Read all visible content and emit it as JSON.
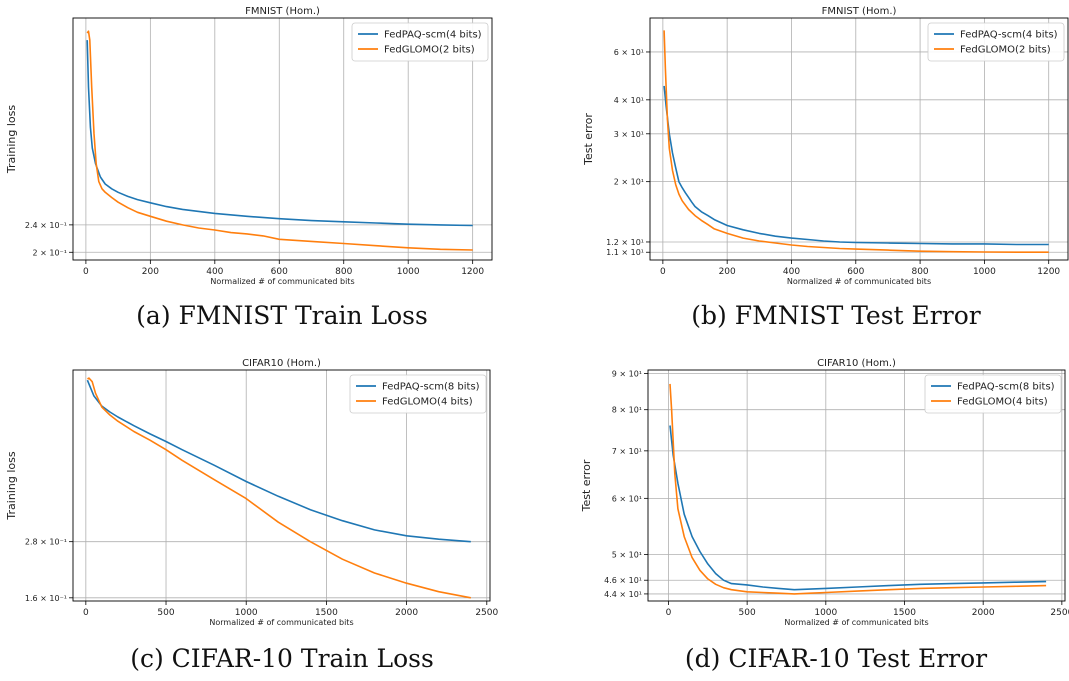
{
  "colors": {
    "series1": "#1f77b4",
    "series2": "#ff7f0e",
    "grid": "#b0b0b0"
  },
  "captions": [
    "(a) FMNIST Train Loss",
    "(b) FMNIST Test Error",
    "(c) CIFAR-10 Train Loss",
    "(d) CIFAR-10 Test Error"
  ],
  "chart_data": [
    {
      "type": "line",
      "title": "FMNIST (Hom.)",
      "xlabel": "Normalized # of communicated bits",
      "ylabel": "Training loss",
      "yscale": "log",
      "xlim": [
        -40,
        1260
      ],
      "ylim": [
        0.19,
        0.95
      ],
      "xticks": [
        0,
        200,
        400,
        600,
        800,
        1000,
        1200
      ],
      "xticklabels": [
        "0",
        "200",
        "400",
        "600",
        "800",
        "1000",
        "1200"
      ],
      "yticks": [
        0.24,
        0.2
      ],
      "yticklabels": [
        "2.4 × 10⁻¹",
        "2 × 10⁻¹"
      ],
      "grid": true,
      "legend": "top-right",
      "series": [
        {
          "name": "FedPAQ-scm(4 bits)",
          "x": [
            4,
            8,
            14,
            20,
            30,
            45,
            60,
            80,
            100,
            130,
            160,
            200,
            250,
            300,
            400,
            500,
            600,
            700,
            800,
            900,
            1000,
            1100,
            1200
          ],
          "y": [
            0.82,
            0.6,
            0.46,
            0.4,
            0.36,
            0.33,
            0.315,
            0.305,
            0.298,
            0.29,
            0.284,
            0.278,
            0.271,
            0.266,
            0.259,
            0.254,
            0.25,
            0.247,
            0.245,
            0.243,
            0.241,
            0.24,
            0.239
          ]
        },
        {
          "name": "FedGLOMO(2 bits)",
          "x": [
            4,
            8,
            12,
            18,
            25,
            32,
            40,
            50,
            60,
            80,
            100,
            130,
            160,
            200,
            250,
            300,
            350,
            400,
            450,
            500,
            550,
            600,
            700,
            800,
            900,
            1000,
            1100,
            1200
          ],
          "y": [
            0.86,
            0.87,
            0.82,
            0.6,
            0.44,
            0.36,
            0.32,
            0.305,
            0.298,
            0.288,
            0.279,
            0.269,
            0.261,
            0.254,
            0.246,
            0.24,
            0.235,
            0.232,
            0.228,
            0.226,
            0.223,
            0.218,
            0.215,
            0.212,
            0.209,
            0.206,
            0.204,
            0.203
          ]
        }
      ]
    },
    {
      "type": "line",
      "title": "FMNIST (Hom.)",
      "xlabel": "Normalized # of communicated bits",
      "ylabel": "Test error",
      "yscale": "log",
      "xlim": [
        -40,
        1260
      ],
      "ylim": [
        10.3,
        80
      ],
      "xticks": [
        0,
        200,
        400,
        600,
        800,
        1000,
        1200
      ],
      "xticklabels": [
        "0",
        "200",
        "400",
        "600",
        "800",
        "1000",
        "1200"
      ],
      "yticks": [
        60,
        40,
        30,
        20,
        12,
        11
      ],
      "yticklabels": [
        "6 × 10¹",
        "4 × 10¹",
        "3 × 10¹",
        "2 × 10¹",
        "1.2 × 10¹",
        "1.1 × 10¹"
      ],
      "grid": true,
      "legend": "top-right",
      "series": [
        {
          "name": "FedPAQ-scm(4 bits)",
          "x": [
            4,
            10,
            20,
            30,
            40,
            50,
            60,
            70,
            80,
            90,
            100,
            120,
            140,
            160,
            200,
            250,
            300,
            350,
            400,
            450,
            500,
            550,
            600,
            700,
            800,
            900,
            1000,
            1100,
            1200
          ],
          "y": [
            45,
            38,
            30,
            25.5,
            22.5,
            20,
            19,
            18.2,
            17.5,
            16.8,
            16.2,
            15.5,
            15,
            14.5,
            13.8,
            13.3,
            12.9,
            12.6,
            12.4,
            12.25,
            12.1,
            12.0,
            11.95,
            11.9,
            11.85,
            11.8,
            11.8,
            11.75,
            11.75
          ]
        },
        {
          "name": "FedGLOMO(2 bits)",
          "x": [
            4,
            8,
            14,
            20,
            30,
            40,
            50,
            60,
            80,
            100,
            120,
            140,
            160,
            200,
            250,
            300,
            350,
            400,
            450,
            500,
            550,
            600,
            700,
            800,
            900,
            1000,
            1100,
            1200
          ],
          "y": [
            72,
            52,
            34,
            26.5,
            22,
            19.5,
            18,
            17,
            15.8,
            15,
            14.4,
            13.9,
            13.4,
            12.9,
            12.4,
            12.1,
            11.9,
            11.7,
            11.55,
            11.45,
            11.35,
            11.3,
            11.2,
            11.1,
            11.05,
            11.02,
            11.0,
            11.0
          ]
        }
      ]
    },
    {
      "type": "line",
      "title": "CIFAR10 (Hom.)",
      "xlabel": "Normalized # of communicated bits",
      "ylabel": "Training loss",
      "yscale": "log",
      "xlim": [
        -80,
        2520
      ],
      "ylim": [
        0.155,
        1.55
      ],
      "xticks": [
        0,
        500,
        1000,
        1500,
        2000,
        2500
      ],
      "xticklabels": [
        "0",
        "500",
        "1000",
        "1500",
        "2000",
        "2500"
      ],
      "yticks": [
        0.28,
        0.16
      ],
      "yticklabels": [
        "2.8 × 10⁻¹",
        "1.6 × 10⁻¹"
      ],
      "grid": true,
      "legend": "top-right",
      "series": [
        {
          "name": "FedPAQ-scm(8 bits)",
          "x": [
            10,
            50,
            100,
            150,
            200,
            300,
            400,
            500,
            600,
            800,
            1000,
            1200,
            1400,
            1600,
            1800,
            2000,
            2200,
            2400
          ],
          "y": [
            1.4,
            1.2,
            1.08,
            1.02,
            0.97,
            0.89,
            0.82,
            0.76,
            0.7,
            0.6,
            0.51,
            0.44,
            0.385,
            0.345,
            0.315,
            0.297,
            0.287,
            0.28
          ]
        },
        {
          "name": "FedGLOMO(4 bits)",
          "x": [
            10,
            20,
            40,
            60,
            100,
            150,
            200,
            300,
            400,
            500,
            600,
            800,
            1000,
            1200,
            1400,
            1600,
            1800,
            2000,
            2200,
            2400
          ],
          "y": [
            1.42,
            1.43,
            1.38,
            1.23,
            1.07,
            0.99,
            0.93,
            0.84,
            0.77,
            0.7,
            0.63,
            0.52,
            0.43,
            0.34,
            0.28,
            0.235,
            0.205,
            0.185,
            0.17,
            0.16
          ]
        }
      ]
    },
    {
      "type": "line",
      "title": "CIFAR10 (Hom.)",
      "xlabel": "Normalized # of communicated bits",
      "ylabel": "Test error",
      "yscale": "log",
      "xlim": [
        -130,
        2520
      ],
      "ylim": [
        43,
        91
      ],
      "xticks": [
        0,
        500,
        1000,
        1500,
        2000,
        2500
      ],
      "xticklabels": [
        "0",
        "500",
        "1000",
        "1500",
        "2000",
        "2500"
      ],
      "yticks": [
        90,
        80,
        70,
        60,
        50,
        46,
        44
      ],
      "yticklabels": [
        "9 × 10¹",
        "8 × 10¹",
        "7 × 10¹",
        "6 × 10¹",
        "5 × 10¹",
        "4.6 × 10¹",
        "4.4 × 10¹"
      ],
      "grid": true,
      "legend": "top-right",
      "series": [
        {
          "name": "FedPAQ-scm(8 bits)",
          "x": [
            10,
            30,
            60,
            100,
            150,
            200,
            250,
            300,
            350,
            400,
            500,
            600,
            700,
            800,
            900,
            1000,
            1200,
            1400,
            1600,
            1800,
            2000,
            2200,
            2400
          ],
          "y": [
            76,
            69,
            63,
            57,
            53,
            50.5,
            48.5,
            47,
            46,
            45.5,
            45.3,
            45.0,
            44.8,
            44.6,
            44.7,
            44.8,
            45.0,
            45.2,
            45.4,
            45.5,
            45.6,
            45.7,
            45.8
          ]
        },
        {
          "name": "FedGLOMO(4 bits)",
          "x": [
            10,
            20,
            40,
            60,
            100,
            150,
            200,
            250,
            300,
            350,
            400,
            500,
            600,
            700,
            800,
            900,
            1000,
            1200,
            1400,
            1600,
            1800,
            2000,
            2200,
            2400
          ],
          "y": [
            87,
            80,
            65,
            58,
            53,
            49.5,
            47.5,
            46.2,
            45.4,
            44.9,
            44.6,
            44.3,
            44.2,
            44.1,
            44.0,
            44.1,
            44.2,
            44.4,
            44.6,
            44.8,
            44.9,
            45.0,
            45.1,
            45.2
          ]
        }
      ]
    }
  ]
}
